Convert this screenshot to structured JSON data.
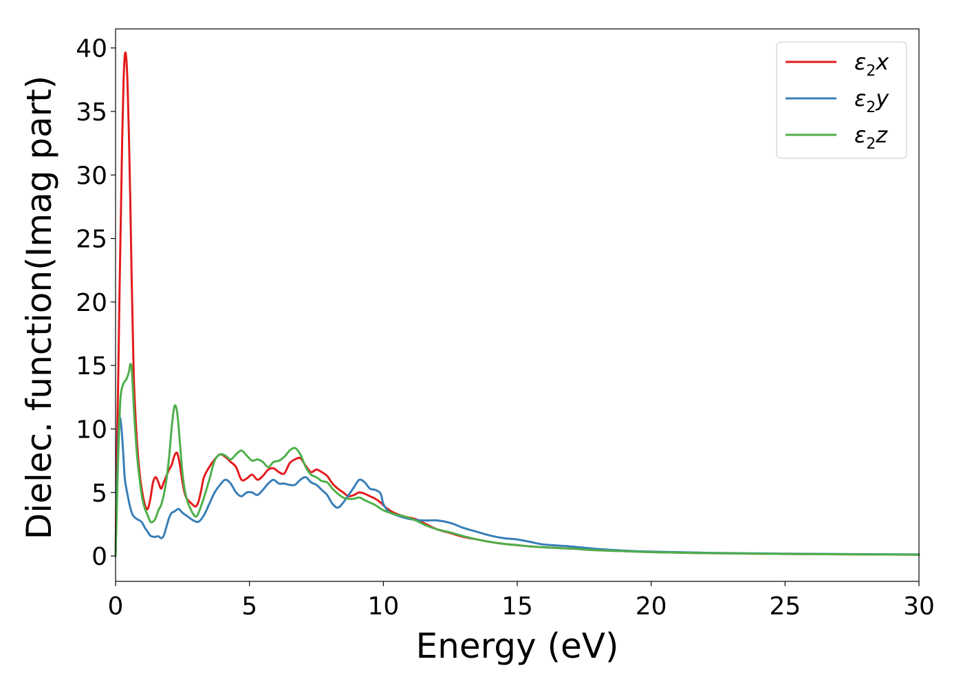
{
  "chart_data": {
    "type": "line",
    "xlabel": "Energy (eV)",
    "ylabel": "Dielec. function(Imag part)",
    "xlim": [
      0,
      30
    ],
    "ylim": [
      -2,
      41.5
    ],
    "xticks": [
      "0",
      "5",
      "10",
      "15",
      "20",
      "25",
      "30"
    ],
    "xtick_values": [
      0,
      5,
      10,
      15,
      20,
      25,
      30
    ],
    "yticks": [
      "0",
      "5",
      "10",
      "15",
      "20",
      "25",
      "30",
      "35",
      "40"
    ],
    "ytick_values": [
      0,
      5,
      10,
      15,
      20,
      25,
      30,
      35,
      40
    ],
    "grid": false,
    "legend_position": "top-right",
    "series": [
      {
        "name": "ε₂x",
        "legend_base": "ε",
        "legend_sub": "2",
        "legend_suffix": "x",
        "color": "#e41a1c",
        "points": [
          [
            0.0,
            0.0
          ],
          [
            0.05,
            8.0
          ],
          [
            0.1,
            14.0
          ],
          [
            0.15,
            21.0
          ],
          [
            0.2,
            27.0
          ],
          [
            0.25,
            33.0
          ],
          [
            0.3,
            37.5
          ],
          [
            0.35,
            39.5
          ],
          [
            0.4,
            39.2
          ],
          [
            0.45,
            37.0
          ],
          [
            0.5,
            33.0
          ],
          [
            0.55,
            28.0
          ],
          [
            0.6,
            22.0
          ],
          [
            0.65,
            17.0
          ],
          [
            0.7,
            13.0
          ],
          [
            0.8,
            9.0
          ],
          [
            0.9,
            6.5
          ],
          [
            1.0,
            5.0
          ],
          [
            1.1,
            4.0
          ],
          [
            1.2,
            3.7
          ],
          [
            1.3,
            4.5
          ],
          [
            1.4,
            5.8
          ],
          [
            1.5,
            6.2
          ],
          [
            1.6,
            5.8
          ],
          [
            1.7,
            5.3
          ],
          [
            1.8,
            5.8
          ],
          [
            1.9,
            6.3
          ],
          [
            2.0,
            6.8
          ],
          [
            2.1,
            7.2
          ],
          [
            2.2,
            7.9
          ],
          [
            2.3,
            8.1
          ],
          [
            2.4,
            7.2
          ],
          [
            2.5,
            5.8
          ],
          [
            2.6,
            4.8
          ],
          [
            2.7,
            4.4
          ],
          [
            2.8,
            4.2
          ],
          [
            2.9,
            4.0
          ],
          [
            3.0,
            3.9
          ],
          [
            3.1,
            4.3
          ],
          [
            3.2,
            5.2
          ],
          [
            3.3,
            6.2
          ],
          [
            3.5,
            7.0
          ],
          [
            3.7,
            7.6
          ],
          [
            3.9,
            8.0
          ],
          [
            4.1,
            7.8
          ],
          [
            4.3,
            7.4
          ],
          [
            4.5,
            7.0
          ],
          [
            4.7,
            6.0
          ],
          [
            4.9,
            6.1
          ],
          [
            5.1,
            6.4
          ],
          [
            5.3,
            6.0
          ],
          [
            5.5,
            6.3
          ],
          [
            5.7,
            6.8
          ],
          [
            5.9,
            6.9
          ],
          [
            6.1,
            6.6
          ],
          [
            6.3,
            6.5
          ],
          [
            6.5,
            7.3
          ],
          [
            6.7,
            7.6
          ],
          [
            6.9,
            7.7
          ],
          [
            7.1,
            7.1
          ],
          [
            7.3,
            6.6
          ],
          [
            7.5,
            6.8
          ],
          [
            7.7,
            6.6
          ],
          [
            7.9,
            6.3
          ],
          [
            8.1,
            5.7
          ],
          [
            8.3,
            5.3
          ],
          [
            8.5,
            5.0
          ],
          [
            8.7,
            4.7
          ],
          [
            8.9,
            4.8
          ],
          [
            9.1,
            5.0
          ],
          [
            9.3,
            4.9
          ],
          [
            9.5,
            4.7
          ],
          [
            9.7,
            4.5
          ],
          [
            9.9,
            4.2
          ],
          [
            10.1,
            3.8
          ],
          [
            10.4,
            3.4
          ],
          [
            10.8,
            3.1
          ],
          [
            11.2,
            2.9
          ],
          [
            11.6,
            2.5
          ],
          [
            12.0,
            2.1
          ],
          [
            12.5,
            1.8
          ],
          [
            13.0,
            1.5
          ],
          [
            13.5,
            1.3
          ],
          [
            14.0,
            1.1
          ],
          [
            14.5,
            0.95
          ],
          [
            15.0,
            0.85
          ],
          [
            15.5,
            0.75
          ],
          [
            16.0,
            0.68
          ],
          [
            17.0,
            0.58
          ],
          [
            18.0,
            0.45
          ],
          [
            19.0,
            0.38
          ],
          [
            20.0,
            0.3
          ],
          [
            22.0,
            0.22
          ],
          [
            25.0,
            0.16
          ],
          [
            28.0,
            0.12
          ],
          [
            30.0,
            0.1
          ]
        ]
      },
      {
        "name": "ε₂y",
        "legend_base": "ε",
        "legend_sub": "2",
        "legend_suffix": "y",
        "color": "#377eb8",
        "points": [
          [
            0.0,
            0.0
          ],
          [
            0.05,
            5.0
          ],
          [
            0.1,
            9.0
          ],
          [
            0.15,
            10.8
          ],
          [
            0.2,
            10.5
          ],
          [
            0.25,
            9.3
          ],
          [
            0.3,
            7.6
          ],
          [
            0.35,
            6.0
          ],
          [
            0.45,
            4.8
          ],
          [
            0.55,
            3.8
          ],
          [
            0.65,
            3.2
          ],
          [
            0.8,
            2.9
          ],
          [
            0.9,
            2.8
          ],
          [
            1.0,
            2.6
          ],
          [
            1.1,
            2.2
          ],
          [
            1.2,
            1.9
          ],
          [
            1.3,
            1.6
          ],
          [
            1.45,
            1.5
          ],
          [
            1.6,
            1.55
          ],
          [
            1.7,
            1.4
          ],
          [
            1.8,
            1.6
          ],
          [
            1.9,
            2.3
          ],
          [
            2.0,
            3.0
          ],
          [
            2.1,
            3.4
          ],
          [
            2.2,
            3.5
          ],
          [
            2.35,
            3.7
          ],
          [
            2.5,
            3.4
          ],
          [
            2.7,
            3.1
          ],
          [
            2.9,
            2.8
          ],
          [
            3.1,
            2.7
          ],
          [
            3.3,
            3.2
          ],
          [
            3.5,
            4.1
          ],
          [
            3.7,
            5.0
          ],
          [
            3.9,
            5.6
          ],
          [
            4.1,
            6.0
          ],
          [
            4.3,
            5.7
          ],
          [
            4.5,
            5.0
          ],
          [
            4.7,
            4.7
          ],
          [
            4.9,
            5.0
          ],
          [
            5.1,
            5.0
          ],
          [
            5.3,
            4.8
          ],
          [
            5.5,
            5.2
          ],
          [
            5.7,
            5.7
          ],
          [
            5.9,
            6.0
          ],
          [
            6.1,
            5.7
          ],
          [
            6.3,
            5.7
          ],
          [
            6.5,
            5.6
          ],
          [
            6.7,
            5.6
          ],
          [
            6.9,
            6.0
          ],
          [
            7.1,
            6.2
          ],
          [
            7.3,
            5.8
          ],
          [
            7.5,
            5.6
          ],
          [
            7.7,
            5.2
          ],
          [
            7.9,
            4.8
          ],
          [
            8.1,
            4.1
          ],
          [
            8.3,
            3.8
          ],
          [
            8.5,
            4.2
          ],
          [
            8.7,
            4.8
          ],
          [
            8.9,
            5.4
          ],
          [
            9.1,
            6.0
          ],
          [
            9.3,
            5.8
          ],
          [
            9.5,
            5.3
          ],
          [
            9.7,
            5.2
          ],
          [
            9.9,
            4.9
          ],
          [
            10.0,
            4.1
          ],
          [
            10.2,
            3.5
          ],
          [
            10.5,
            3.2
          ],
          [
            11.0,
            2.9
          ],
          [
            11.5,
            2.8
          ],
          [
            12.0,
            2.8
          ],
          [
            12.5,
            2.6
          ],
          [
            13.0,
            2.2
          ],
          [
            13.5,
            1.9
          ],
          [
            14.0,
            1.6
          ],
          [
            14.5,
            1.4
          ],
          [
            15.0,
            1.3
          ],
          [
            15.5,
            1.1
          ],
          [
            16.0,
            0.9
          ],
          [
            17.0,
            0.75
          ],
          [
            18.0,
            0.55
          ],
          [
            19.0,
            0.42
          ],
          [
            20.0,
            0.34
          ],
          [
            22.0,
            0.25
          ],
          [
            25.0,
            0.18
          ],
          [
            28.0,
            0.14
          ],
          [
            30.0,
            0.12
          ]
        ]
      },
      {
        "name": "ε₂z",
        "legend_base": "ε",
        "legend_sub": "2",
        "legend_suffix": "z",
        "color": "#4daf4a",
        "points": [
          [
            0.0,
            0.0
          ],
          [
            0.05,
            4.0
          ],
          [
            0.1,
            8.0
          ],
          [
            0.15,
            11.0
          ],
          [
            0.2,
            12.8
          ],
          [
            0.3,
            13.6
          ],
          [
            0.4,
            13.9
          ],
          [
            0.5,
            14.5
          ],
          [
            0.55,
            15.1
          ],
          [
            0.6,
            14.8
          ],
          [
            0.65,
            13.0
          ],
          [
            0.7,
            11.0
          ],
          [
            0.8,
            8.0
          ],
          [
            0.9,
            6.0
          ],
          [
            1.0,
            4.5
          ],
          [
            1.1,
            3.7
          ],
          [
            1.2,
            3.2
          ],
          [
            1.3,
            2.7
          ],
          [
            1.4,
            2.7
          ],
          [
            1.5,
            3.0
          ],
          [
            1.6,
            3.6
          ],
          [
            1.7,
            4.0
          ],
          [
            1.8,
            4.8
          ],
          [
            1.9,
            6.0
          ],
          [
            2.0,
            7.8
          ],
          [
            2.1,
            10.2
          ],
          [
            2.2,
            11.8
          ],
          [
            2.3,
            11.3
          ],
          [
            2.4,
            9.0
          ],
          [
            2.5,
            6.5
          ],
          [
            2.6,
            5.0
          ],
          [
            2.7,
            4.2
          ],
          [
            2.8,
            3.7
          ],
          [
            2.9,
            3.3
          ],
          [
            3.0,
            3.1
          ],
          [
            3.1,
            3.4
          ],
          [
            3.3,
            4.6
          ],
          [
            3.5,
            6.0
          ],
          [
            3.7,
            7.5
          ],
          [
            3.9,
            8.0
          ],
          [
            4.1,
            7.9
          ],
          [
            4.3,
            7.6
          ],
          [
            4.5,
            8.0
          ],
          [
            4.7,
            8.3
          ],
          [
            4.9,
            7.9
          ],
          [
            5.1,
            7.5
          ],
          [
            5.3,
            7.6
          ],
          [
            5.5,
            7.4
          ],
          [
            5.7,
            7.0
          ],
          [
            5.9,
            7.4
          ],
          [
            6.1,
            7.5
          ],
          [
            6.3,
            7.8
          ],
          [
            6.5,
            8.3
          ],
          [
            6.7,
            8.5
          ],
          [
            6.9,
            8.0
          ],
          [
            7.1,
            7.0
          ],
          [
            7.3,
            6.4
          ],
          [
            7.5,
            6.2
          ],
          [
            7.7,
            5.9
          ],
          [
            7.9,
            5.8
          ],
          [
            8.1,
            5.3
          ],
          [
            8.3,
            4.9
          ],
          [
            8.5,
            4.6
          ],
          [
            8.7,
            4.5
          ],
          [
            8.9,
            4.5
          ],
          [
            9.1,
            4.6
          ],
          [
            9.3,
            4.4
          ],
          [
            9.5,
            4.2
          ],
          [
            9.7,
            4.0
          ],
          [
            10.0,
            3.6
          ],
          [
            10.4,
            3.3
          ],
          [
            10.8,
            3.1
          ],
          [
            11.2,
            2.8
          ],
          [
            11.6,
            2.4
          ],
          [
            12.0,
            2.1
          ],
          [
            12.5,
            1.85
          ],
          [
            13.0,
            1.55
          ],
          [
            13.5,
            1.3
          ],
          [
            14.0,
            1.1
          ],
          [
            14.5,
            0.95
          ],
          [
            15.0,
            0.85
          ],
          [
            15.5,
            0.75
          ],
          [
            16.0,
            0.68
          ],
          [
            17.0,
            0.58
          ],
          [
            18.0,
            0.45
          ],
          [
            19.0,
            0.38
          ],
          [
            20.0,
            0.3
          ],
          [
            22.0,
            0.22
          ],
          [
            25.0,
            0.16
          ],
          [
            28.0,
            0.12
          ],
          [
            30.0,
            0.1
          ]
        ]
      }
    ]
  }
}
